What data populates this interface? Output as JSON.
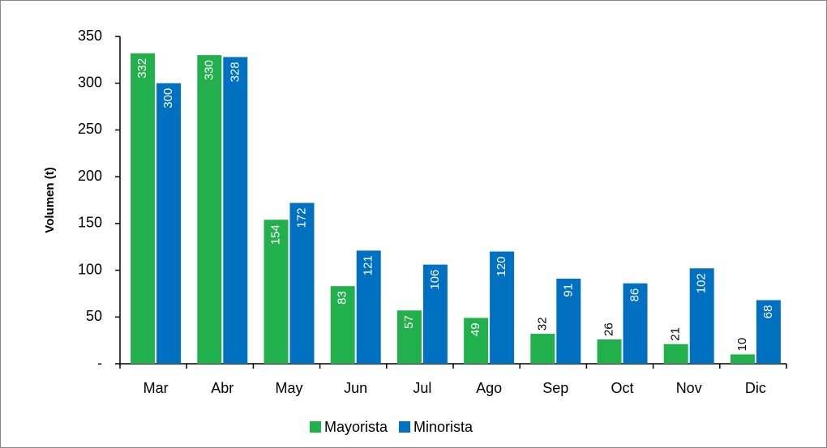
{
  "chart_data": {
    "type": "bar",
    "y_label": "Volumen (t)",
    "categories": [
      "Mar",
      "Abr",
      "May",
      "Jun",
      "Jul",
      "Ago",
      "Sep",
      "Oct",
      "Nov",
      "Dic"
    ],
    "series": [
      {
        "name": "Mayorista",
        "color": "#21b04b",
        "values": [
          332,
          330,
          154,
          83,
          57,
          49,
          32,
          26,
          21,
          10
        ]
      },
      {
        "name": "Minorista",
        "color": "#0070c0",
        "values": [
          300,
          328,
          172,
          121,
          106,
          120,
          91,
          86,
          102,
          68
        ]
      }
    ],
    "ylim": [
      0,
      350
    ],
    "yticks": [
      {
        "value": 0,
        "label": "-"
      },
      50,
      100,
      150,
      200,
      250,
      300,
      350
    ],
    "grid": false,
    "legend": "bottom"
  }
}
